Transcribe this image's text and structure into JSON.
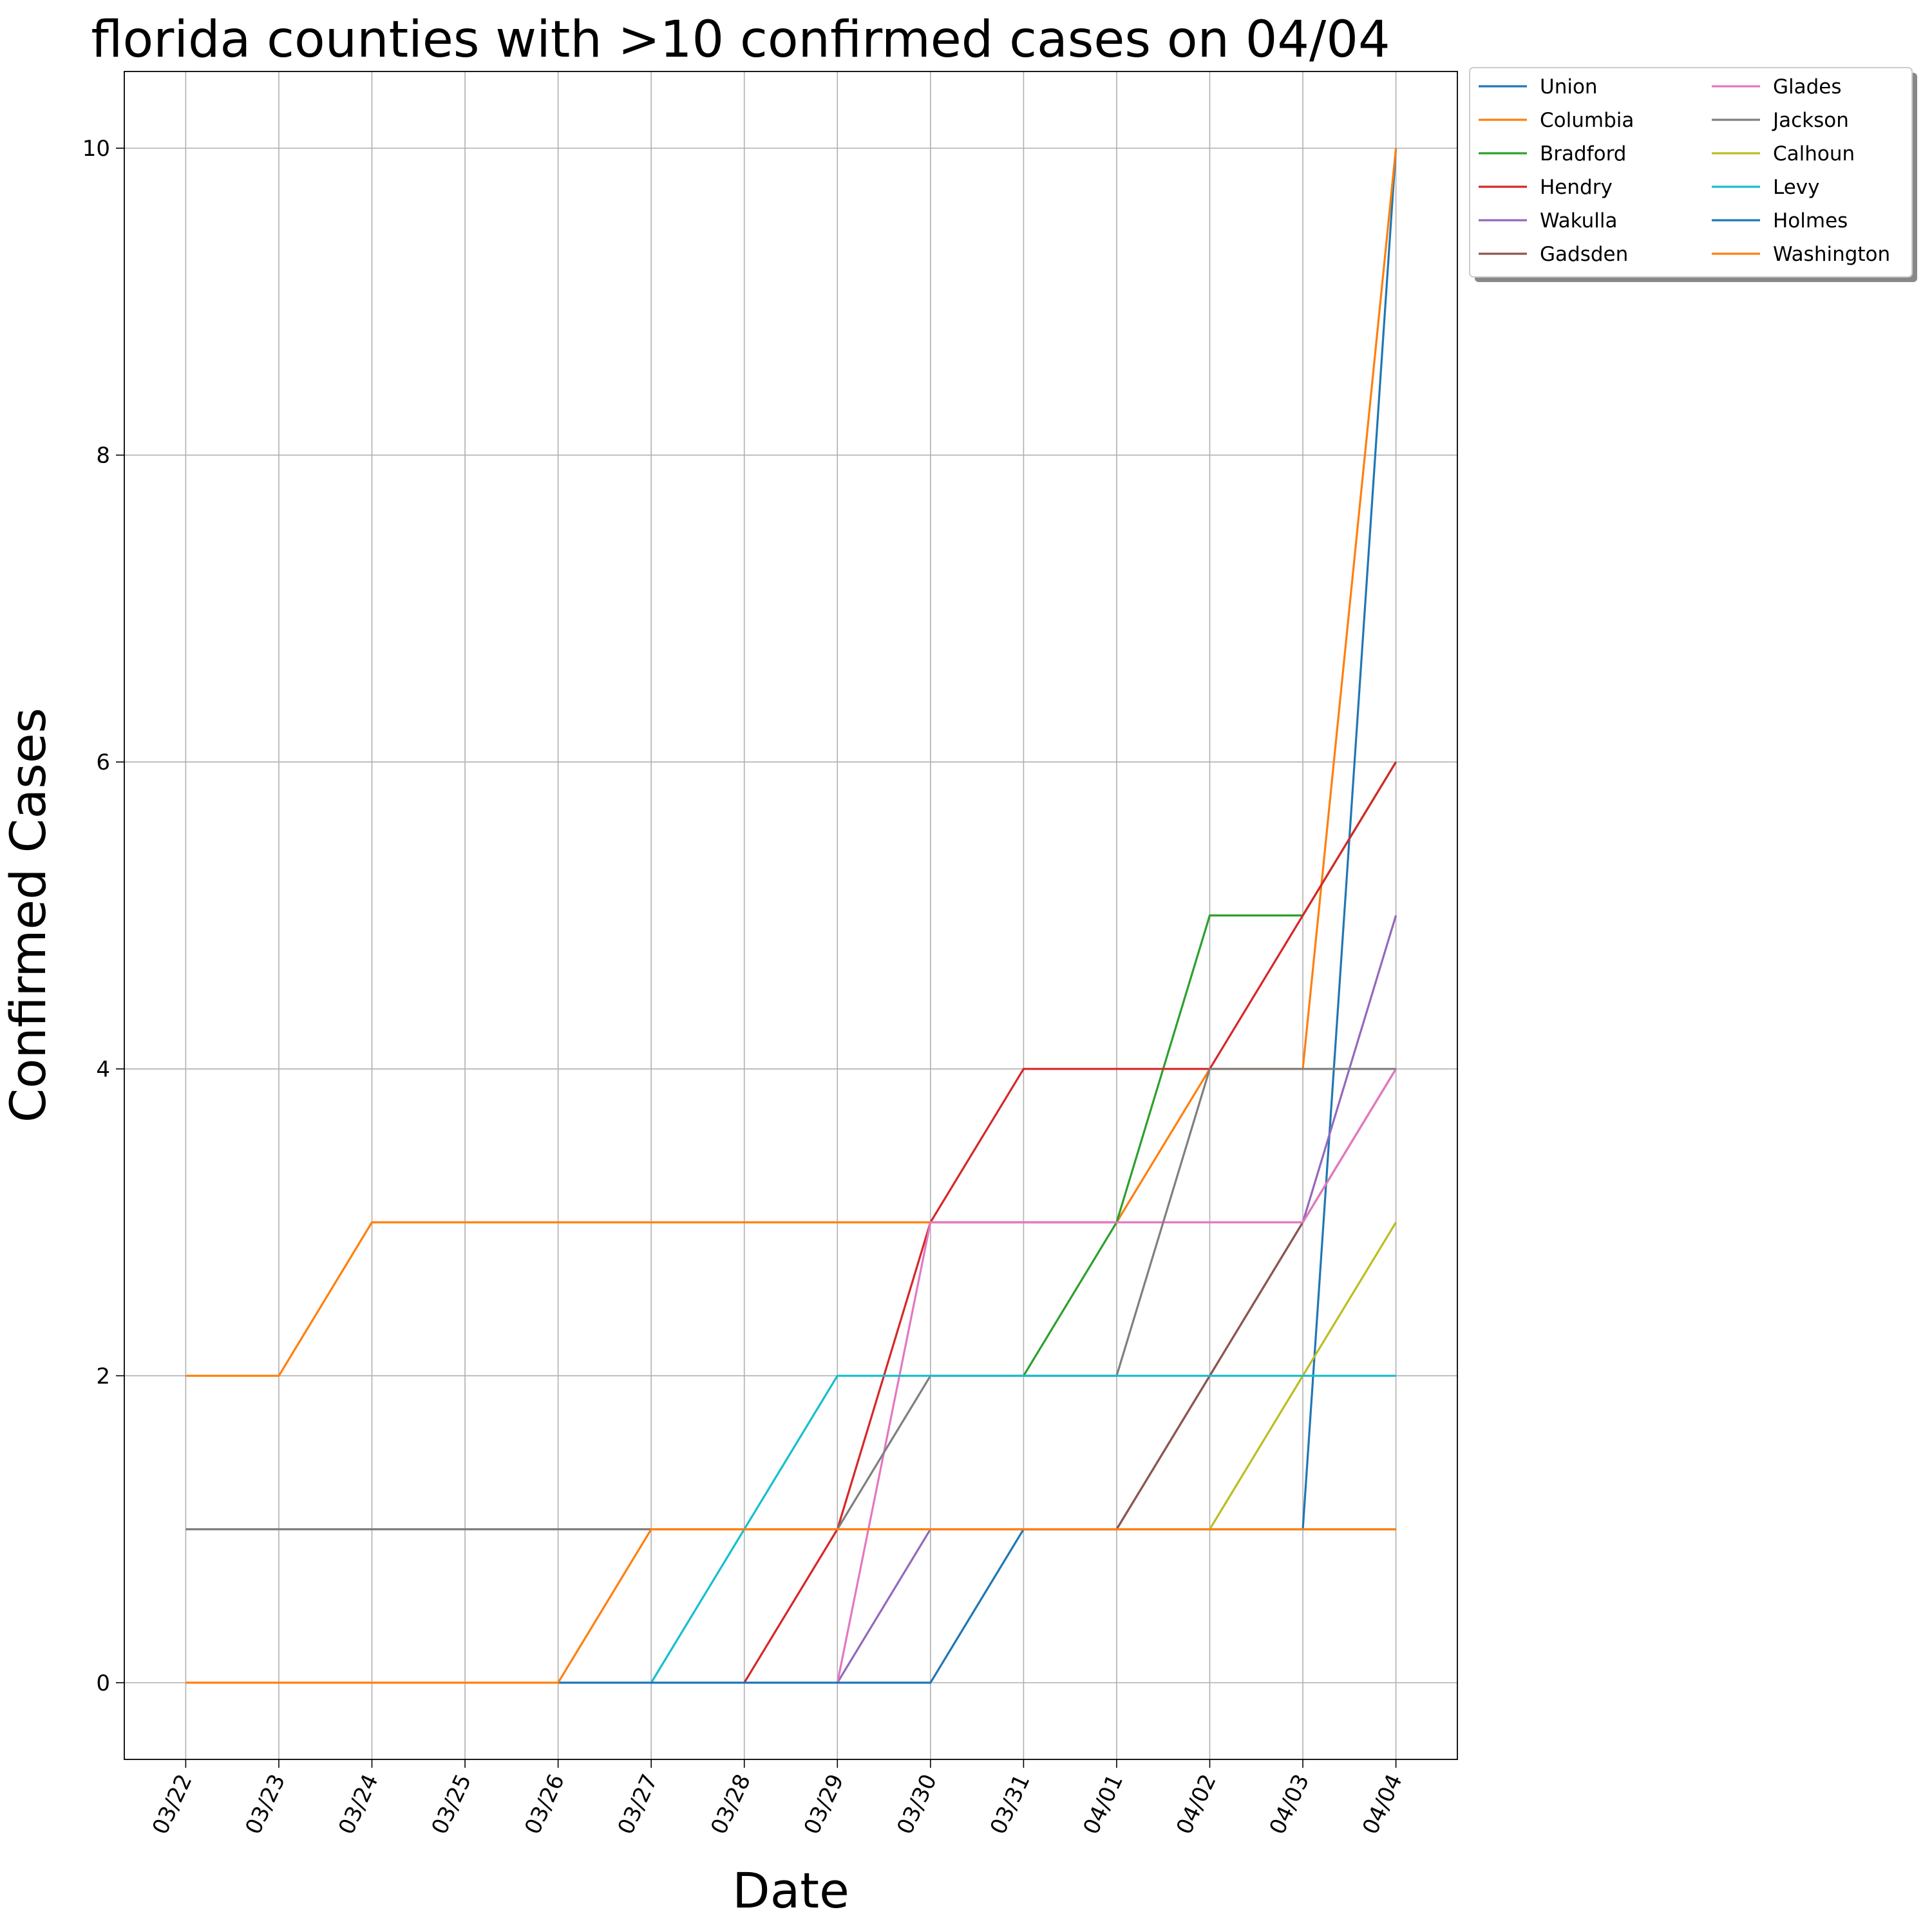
{
  "chart_data": {
    "type": "line",
    "title": "florida counties with >10 confirmed cases on 04/04",
    "xlabel": "Date",
    "ylabel": "Confirmed Cases",
    "categories": [
      "03/22",
      "03/23",
      "03/24",
      "03/25",
      "03/26",
      "03/27",
      "03/28",
      "03/29",
      "03/30",
      "03/31",
      "04/01",
      "04/02",
      "04/03",
      "04/04"
    ],
    "ylim": [
      -0.5,
      10.5
    ],
    "yticks": [
      0,
      2,
      4,
      6,
      8,
      10
    ],
    "grid": true,
    "legend": "outside upper right",
    "series": [
      {
        "name": "Union",
        "color": "#1f77b4",
        "values": [
          null,
          null,
          null,
          null,
          null,
          null,
          null,
          null,
          null,
          null,
          null,
          null,
          1,
          10
        ]
      },
      {
        "name": "Columbia",
        "color": "#ff7f0e",
        "values": [
          2,
          2,
          3,
          3,
          3,
          3,
          3,
          3,
          3,
          3,
          3,
          4,
          4,
          10
        ]
      },
      {
        "name": "Bradford",
        "color": "#2ca02c",
        "values": [
          null,
          null,
          null,
          null,
          null,
          null,
          null,
          null,
          null,
          2,
          3,
          5,
          5,
          6
        ]
      },
      {
        "name": "Hendry",
        "color": "#d62728",
        "values": [
          null,
          null,
          null,
          null,
          null,
          null,
          0,
          1,
          3,
          4,
          4,
          4,
          5,
          6
        ]
      },
      {
        "name": "Wakulla",
        "color": "#9467bd",
        "values": [
          null,
          null,
          null,
          null,
          null,
          null,
          null,
          0,
          1,
          1,
          1,
          2,
          3,
          5
        ]
      },
      {
        "name": "Gadsden",
        "color": "#8c564b",
        "values": [
          null,
          null,
          null,
          null,
          null,
          null,
          null,
          null,
          null,
          null,
          1,
          2,
          3,
          4
        ]
      },
      {
        "name": "Glades",
        "color": "#e377c2",
        "values": [
          null,
          null,
          null,
          null,
          null,
          null,
          null,
          0,
          3,
          3,
          3,
          3,
          3,
          4
        ]
      },
      {
        "name": "Jackson",
        "color": "#7f7f7f",
        "values": [
          1,
          1,
          1,
          1,
          1,
          1,
          1,
          1,
          2,
          2,
          2,
          4,
          4,
          4
        ]
      },
      {
        "name": "Calhoun",
        "color": "#bcbd22",
        "values": [
          null,
          null,
          null,
          null,
          null,
          null,
          null,
          null,
          null,
          null,
          null,
          1,
          2,
          3
        ]
      },
      {
        "name": "Levy",
        "color": "#17becf",
        "values": [
          null,
          null,
          null,
          null,
          null,
          0,
          1,
          2,
          2,
          2,
          2,
          2,
          2,
          2
        ]
      },
      {
        "name": "Holmes",
        "color": "#1f77b4",
        "values": [
          null,
          null,
          null,
          null,
          0,
          0,
          0,
          0,
          0,
          1,
          1,
          1,
          1,
          1
        ]
      },
      {
        "name": "Washington",
        "color": "#ff7f0e",
        "values": [
          0,
          0,
          0,
          0,
          0,
          1,
          1,
          1,
          1,
          1,
          1,
          1,
          1,
          1
        ]
      }
    ]
  }
}
